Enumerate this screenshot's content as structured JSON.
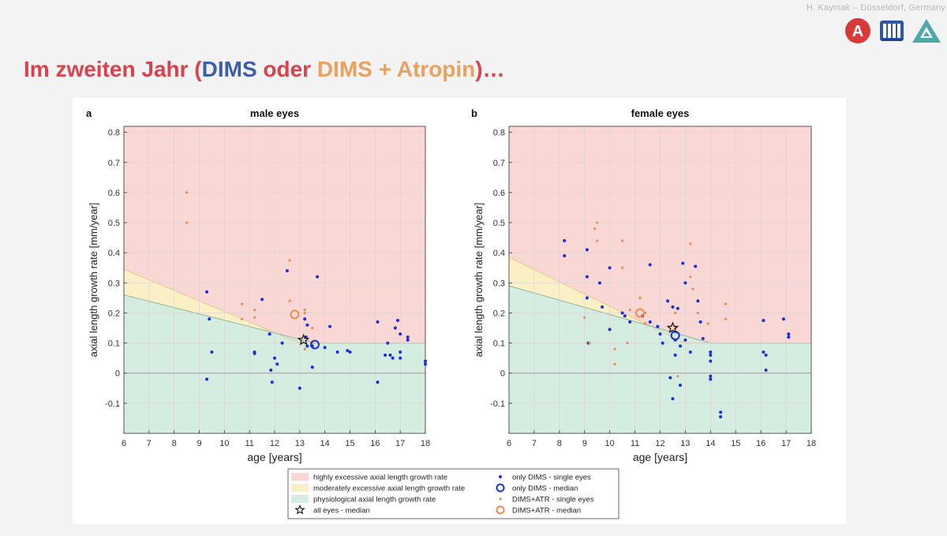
{
  "header": {
    "credit": "H. Kaymak – Düsseldorf, Germany",
    "logo_letter": "A"
  },
  "title": {
    "part1": "Im zweiten Jahr (",
    "dims": "DIMS",
    "mid": " oder ",
    "atr": "DIMS + Atropin",
    "part2": ")…"
  },
  "colors": {
    "title_red": "#d7424d",
    "dims_blue": "#1a2fd8",
    "atr_orange": "#ee8a4a",
    "zone_high": "#f9d7d4",
    "zone_moderate": "#fbefc5",
    "zone_physio": "#d5ece0"
  },
  "legend": {
    "high": "highly excessive axial length growth rate",
    "moderate": "moderately excessive axial length growth rate",
    "physio": "physiological axial length growth rate",
    "all_median": "all eyes - median",
    "dims_single": "only DIMS - single eyes",
    "dims_median": "only DIMS - median",
    "atr_single": "DIMS+ATR - single eyes",
    "atr_median": "DIMS+ATR - median"
  },
  "chart_data": [
    {
      "type": "scatter",
      "panel_label": "a",
      "title": "male eyes",
      "xlabel": "age [years]",
      "ylabel": "axial length growth rate [mm/year]",
      "xlim": [
        6,
        18
      ],
      "ylim": [
        -0.2,
        0.82
      ],
      "xticks": [
        6,
        7,
        8,
        9,
        10,
        11,
        12,
        13,
        14,
        15,
        16,
        17,
        18
      ],
      "yticks": [
        -0.1,
        0,
        0.1,
        0.2,
        0.3,
        0.4,
        0.5,
        0.6,
        0.7,
        0.8
      ],
      "grid": true,
      "zones": {
        "physio_upper": [
          [
            6,
            0.26
          ],
          [
            13.6,
            0.1
          ],
          [
            18,
            0.1
          ]
        ],
        "moderate_upper": [
          [
            6,
            0.345
          ],
          [
            13.0,
            0.1
          ],
          [
            18,
            0.1
          ]
        ]
      },
      "series": [
        {
          "name": "only DIMS - single eyes",
          "points": [
            [
              9.3,
              0.27
            ],
            [
              9.3,
              -0.02
            ],
            [
              9.4,
              0.18
            ],
            [
              9.5,
              0.07
            ],
            [
              11.2,
              0.07
            ],
            [
              11.2,
              0.065
            ],
            [
              11.5,
              0.245
            ],
            [
              11.8,
              0.13
            ],
            [
              11.85,
              0.01
            ],
            [
              11.9,
              -0.03
            ],
            [
              12.0,
              0.05
            ],
            [
              12.1,
              0.03
            ],
            [
              12.3,
              0.1
            ],
            [
              12.5,
              0.34
            ],
            [
              13.0,
              -0.05
            ],
            [
              13.2,
              0.18
            ],
            [
              13.25,
              0.12
            ],
            [
              13.3,
              0.09
            ],
            [
              13.3,
              0.16
            ],
            [
              13.5,
              0.02
            ],
            [
              13.5,
              0.09
            ],
            [
              13.7,
              0.32
            ],
            [
              14.0,
              0.085
            ],
            [
              14.2,
              0.155
            ],
            [
              14.5,
              0.07
            ],
            [
              14.9,
              0.075
            ],
            [
              15.0,
              0.07
            ],
            [
              16.1,
              0.17
            ],
            [
              16.1,
              -0.03
            ],
            [
              16.4,
              0.06
            ],
            [
              16.5,
              0.1
            ],
            [
              16.6,
              0.06
            ],
            [
              16.7,
              0.05
            ],
            [
              16.8,
              0.15
            ],
            [
              16.9,
              0.175
            ],
            [
              17.0,
              0.05
            ],
            [
              17.0,
              0.07
            ],
            [
              17.0,
              0.13
            ],
            [
              17.3,
              0.12
            ],
            [
              17.3,
              0.11
            ],
            [
              18.0,
              0.03
            ],
            [
              18.0,
              0.04
            ]
          ]
        },
        {
          "name": "DIMS+ATR - single eyes",
          "points": [
            [
              8.5,
              0.6
            ],
            [
              8.5,
              0.5
            ],
            [
              10.7,
              0.23
            ],
            [
              10.7,
              0.18
            ],
            [
              11.2,
              0.21
            ],
            [
              11.2,
              0.185
            ],
            [
              12.6,
              0.375
            ],
            [
              12.6,
              0.24
            ],
            [
              13.2,
              0.21
            ],
            [
              13.2,
              0.2
            ],
            [
              13.2,
              0.08
            ],
            [
              13.5,
              0.15
            ],
            [
              13.5,
              0.1
            ]
          ]
        },
        {
          "name": "only DIMS - median",
          "points": [
            [
              13.6,
              0.095
            ]
          ]
        },
        {
          "name": "DIMS+ATR - median",
          "points": [
            [
              12.8,
              0.195
            ]
          ]
        },
        {
          "name": "all eyes - median",
          "points": [
            [
              13.15,
              0.11
            ]
          ]
        }
      ]
    },
    {
      "type": "scatter",
      "panel_label": "b",
      "title": "female eyes",
      "xlabel": "age [years]",
      "ylabel": "axial length growth rate [mm/year]",
      "xlim": [
        6,
        18
      ],
      "ylim": [
        -0.2,
        0.82
      ],
      "xticks": [
        6,
        7,
        8,
        9,
        10,
        11,
        12,
        13,
        14,
        15,
        16,
        17,
        18
      ],
      "yticks": [
        -0.1,
        0,
        0.1,
        0.2,
        0.3,
        0.4,
        0.5,
        0.6,
        0.7,
        0.8
      ],
      "grid": true,
      "zones": {
        "physio_upper": [
          [
            6,
            0.29
          ],
          [
            14.0,
            0.1
          ],
          [
            18,
            0.1
          ]
        ],
        "moderate_upper": [
          [
            6,
            0.385
          ],
          [
            13.0,
            0.1
          ],
          [
            18,
            0.1
          ]
        ]
      },
      "series": [
        {
          "name": "only DIMS - single eyes",
          "points": [
            [
              8.2,
              0.44
            ],
            [
              8.2,
              0.39
            ],
            [
              9.1,
              0.41
            ],
            [
              9.1,
              0.32
            ],
            [
              9.1,
              0.25
            ],
            [
              9.15,
              0.1
            ],
            [
              9.6,
              0.3
            ],
            [
              9.7,
              0.22
            ],
            [
              10.0,
              0.35
            ],
            [
              10.0,
              0.145
            ],
            [
              10.5,
              0.2
            ],
            [
              10.6,
              0.19
            ],
            [
              10.8,
              0.17
            ],
            [
              11.3,
              0.19
            ],
            [
              11.6,
              0.36
            ],
            [
              11.6,
              0.17
            ],
            [
              11.9,
              0.155
            ],
            [
              12.0,
              0.13
            ],
            [
              12.1,
              0.1
            ],
            [
              12.3,
              0.24
            ],
            [
              12.4,
              -0.015
            ],
            [
              12.5,
              0.22
            ],
            [
              12.5,
              -0.085
            ],
            [
              12.6,
              0.11
            ],
            [
              12.6,
              0.06
            ],
            [
              12.7,
              0.215
            ],
            [
              12.8,
              0.09
            ],
            [
              12.8,
              -0.04
            ],
            [
              12.9,
              0.365
            ],
            [
              13.0,
              0.3
            ],
            [
              13.0,
              0.11
            ],
            [
              13.2,
              0.07
            ],
            [
              13.4,
              0.355
            ],
            [
              13.5,
              0.24
            ],
            [
              13.6,
              0.17
            ],
            [
              13.7,
              0.115
            ],
            [
              14.0,
              0.07
            ],
            [
              14.0,
              0.06
            ],
            [
              14.0,
              0.04
            ],
            [
              14.0,
              -0.02
            ],
            [
              14.0,
              -0.01
            ],
            [
              14.4,
              -0.13
            ],
            [
              14.4,
              -0.145
            ],
            [
              16.1,
              0.175
            ],
            [
              16.1,
              0.07
            ],
            [
              16.2,
              0.06
            ],
            [
              16.2,
              0.01
            ],
            [
              16.9,
              0.18
            ],
            [
              17.1,
              0.13
            ],
            [
              17.1,
              0.12
            ]
          ]
        },
        {
          "name": "DIMS+ATR - single eyes",
          "points": [
            [
              9.0,
              0.185
            ],
            [
              9.2,
              0.1
            ],
            [
              9.4,
              0.48
            ],
            [
              9.5,
              0.5
            ],
            [
              9.5,
              0.44
            ],
            [
              10.2,
              0.08
            ],
            [
              10.2,
              0.03
            ],
            [
              10.5,
              0.44
            ],
            [
              10.5,
              0.35
            ],
            [
              10.7,
              0.1
            ],
            [
              10.8,
              0.21
            ],
            [
              11.2,
              0.25
            ],
            [
              11.4,
              0.2
            ],
            [
              11.4,
              0.165
            ],
            [
              12.6,
              0.2
            ],
            [
              12.6,
              0.15
            ],
            [
              12.7,
              -0.01
            ],
            [
              13.2,
              0.43
            ],
            [
              13.2,
              0.32
            ],
            [
              13.3,
              0.28
            ],
            [
              13.5,
              0.2
            ],
            [
              13.9,
              0.165
            ],
            [
              14.6,
              0.23
            ],
            [
              14.6,
              0.18
            ]
          ]
        },
        {
          "name": "only DIMS - median",
          "points": [
            [
              12.6,
              0.125
            ]
          ]
        },
        {
          "name": "DIMS+ATR - median",
          "points": [
            [
              11.2,
              0.2
            ]
          ]
        },
        {
          "name": "all eyes - median",
          "points": [
            [
              12.5,
              0.15
            ]
          ]
        }
      ]
    }
  ]
}
